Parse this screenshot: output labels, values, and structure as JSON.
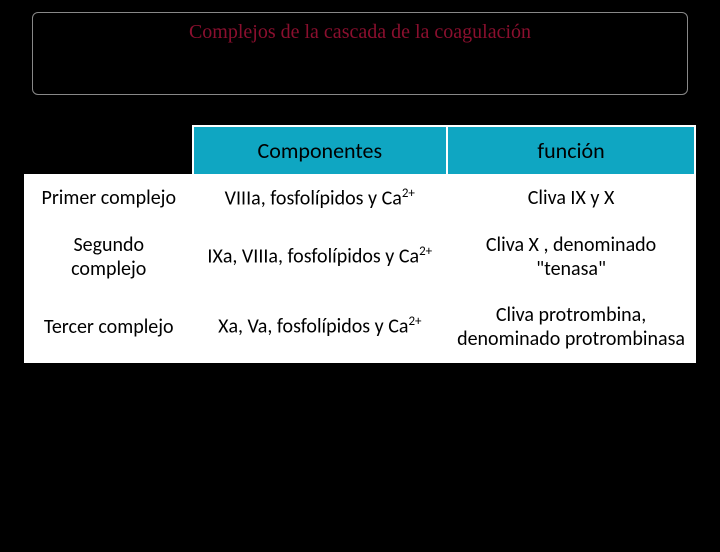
{
  "title": "Complejos de la cascada de la coagulación",
  "header": {
    "blank": "",
    "col1": "Componentes",
    "col2": "función"
  },
  "rows": [
    {
      "label": "Primer complejo",
      "componentes": "VIIIa, fosfolípidos y Ca",
      "funcion": "Cliva IX y X"
    },
    {
      "label": "Segundo complejo",
      "componentes": "IXa, VIIIa,  fosfolípidos y Ca",
      "funcion": "Cliva X , denominado \"tenasa\""
    },
    {
      "label": "Tercer complejo",
      "componentes": "Xa, Va, fosfolípidos y Ca",
      "funcion": "Cliva protrombina, denominado protrombinasa"
    }
  ],
  "superscript": "2+",
  "colors": {
    "background": "#000000",
    "title_text": "#8a0f2e",
    "header_bg": "#0fa6c2",
    "cell_bg": "#ffffff",
    "border": "#ffffff"
  }
}
